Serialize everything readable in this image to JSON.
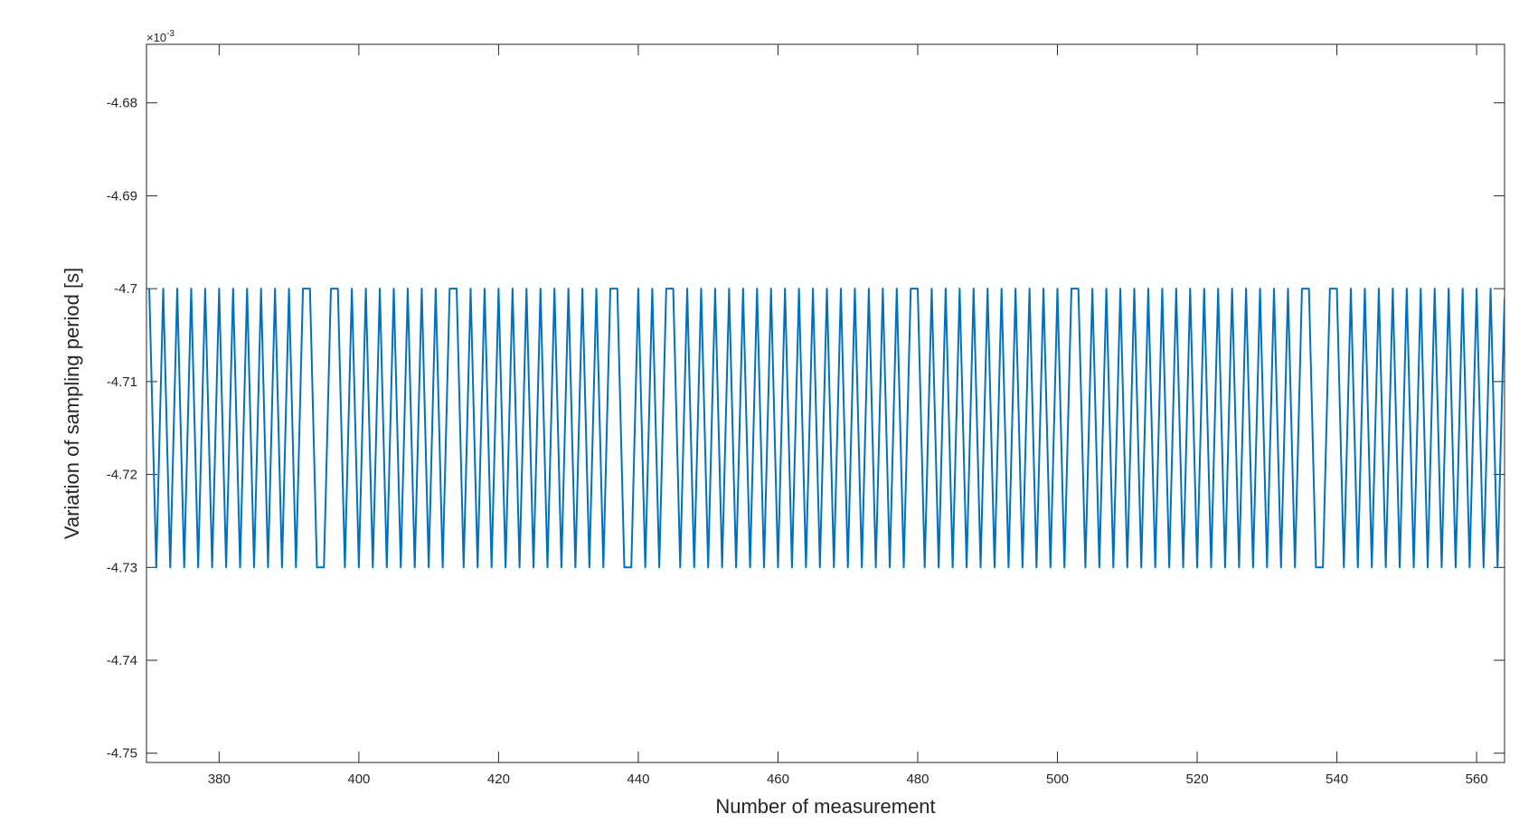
{
  "chart_data": {
    "type": "line",
    "x_label": "Number of measurement",
    "y_label": "Variation of sampling period [s]",
    "y_multiplier": {
      "base": "×10",
      "exponent": "-3"
    },
    "xlim": [
      369.6,
      564
    ],
    "ylim": [
      -4.751,
      -4.6737
    ],
    "xticks": [
      380,
      400,
      420,
      440,
      460,
      480,
      500,
      520,
      540,
      560
    ],
    "yticks": [
      -4.75,
      -4.74,
      -4.73,
      -4.72,
      -4.71,
      -4.7,
      -4.69,
      -4.68
    ],
    "grid": false,
    "x": [
      370,
      371,
      372,
      373,
      374,
      375,
      376,
      377,
      378,
      379,
      380,
      381,
      382,
      383,
      384,
      385,
      386,
      387,
      388,
      389,
      390,
      391,
      392,
      393,
      394,
      395,
      396,
      397,
      398,
      399,
      400,
      401,
      402,
      403,
      404,
      405,
      406,
      407,
      408,
      409,
      410,
      411,
      412,
      413,
      414,
      415,
      416,
      417,
      418,
      419,
      420,
      421,
      422,
      423,
      424,
      425,
      426,
      427,
      428,
      429,
      430,
      431,
      432,
      433,
      434,
      435,
      436,
      437,
      438,
      439,
      440,
      441,
      442,
      443,
      444,
      445,
      446,
      447,
      448,
      449,
      450,
      451,
      452,
      453,
      454,
      455,
      456,
      457,
      458,
      459,
      460,
      461,
      462,
      463,
      464,
      465,
      466,
      467,
      468,
      469,
      470,
      471,
      472,
      473,
      474,
      475,
      476,
      477,
      478,
      479,
      480,
      481,
      482,
      483,
      484,
      485,
      486,
      487,
      488,
      489,
      490,
      491,
      492,
      493,
      494,
      495,
      496,
      497,
      498,
      499,
      500,
      501,
      502,
      503,
      504,
      505,
      506,
      507,
      508,
      509,
      510,
      511,
      512,
      513,
      514,
      515,
      516,
      517,
      518,
      519,
      520,
      521,
      522,
      523,
      524,
      525,
      526,
      527,
      528,
      529,
      530,
      531,
      532,
      533,
      534,
      535,
      536,
      537,
      538,
      539,
      540,
      541,
      542,
      543,
      544,
      545,
      546,
      547,
      548,
      549,
      550,
      551,
      552,
      553,
      554,
      555,
      556,
      557,
      558,
      559,
      560,
      561,
      562,
      563,
      564
    ],
    "series": [
      {
        "name": "Variation of sampling period",
        "color": "#0072BD",
        "values": [
          -4.7,
          -4.73,
          -4.7,
          -4.73,
          -4.7,
          -4.73,
          -4.7,
          -4.73,
          -4.7,
          -4.73,
          -4.7,
          -4.73,
          -4.7,
          -4.73,
          -4.7,
          -4.73,
          -4.7,
          -4.73,
          -4.7,
          -4.73,
          -4.7,
          -4.73,
          -4.7,
          -4.7,
          -4.73,
          -4.73,
          -4.7,
          -4.7,
          -4.73,
          -4.7,
          -4.73,
          -4.7,
          -4.73,
          -4.7,
          -4.73,
          -4.7,
          -4.73,
          -4.7,
          -4.73,
          -4.7,
          -4.73,
          -4.7,
          -4.73,
          -4.7,
          -4.7,
          -4.73,
          -4.7,
          -4.73,
          -4.7,
          -4.73,
          -4.7,
          -4.73,
          -4.7,
          -4.73,
          -4.7,
          -4.73,
          -4.7,
          -4.73,
          -4.7,
          -4.73,
          -4.7,
          -4.73,
          -4.7,
          -4.73,
          -4.7,
          -4.73,
          -4.7,
          -4.7,
          -4.73,
          -4.73,
          -4.7,
          -4.73,
          -4.7,
          -4.73,
          -4.7,
          -4.7,
          -4.73,
          -4.7,
          -4.73,
          -4.7,
          -4.73,
          -4.7,
          -4.73,
          -4.7,
          -4.73,
          -4.7,
          -4.73,
          -4.7,
          -4.73,
          -4.7,
          -4.73,
          -4.7,
          -4.73,
          -4.7,
          -4.73,
          -4.7,
          -4.73,
          -4.7,
          -4.73,
          -4.7,
          -4.73,
          -4.7,
          -4.73,
          -4.7,
          -4.73,
          -4.7,
          -4.73,
          -4.7,
          -4.73,
          -4.7,
          -4.7,
          -4.73,
          -4.7,
          -4.73,
          -4.7,
          -4.73,
          -4.7,
          -4.73,
          -4.7,
          -4.73,
          -4.7,
          -4.73,
          -4.7,
          -4.73,
          -4.7,
          -4.73,
          -4.7,
          -4.73,
          -4.7,
          -4.73,
          -4.7,
          -4.73,
          -4.7,
          -4.7,
          -4.73,
          -4.7,
          -4.73,
          -4.7,
          -4.73,
          -4.7,
          -4.73,
          -4.7,
          -4.73,
          -4.7,
          -4.73,
          -4.7,
          -4.73,
          -4.7,
          -4.73,
          -4.7,
          -4.73,
          -4.7,
          -4.73,
          -4.7,
          -4.73,
          -4.7,
          -4.73,
          -4.7,
          -4.73,
          -4.7,
          -4.73,
          -4.7,
          -4.73,
          -4.7,
          -4.73,
          -4.7,
          -4.7,
          -4.73,
          -4.73,
          -4.7,
          -4.7,
          -4.73,
          -4.7,
          -4.73,
          -4.7,
          -4.73,
          -4.7,
          -4.73,
          -4.7,
          -4.73,
          -4.7,
          -4.73,
          -4.7,
          -4.73,
          -4.7,
          -4.73,
          -4.7,
          -4.73,
          -4.7,
          -4.73,
          -4.7,
          -4.73,
          -4.7,
          -4.73,
          -4.701
        ]
      }
    ]
  }
}
